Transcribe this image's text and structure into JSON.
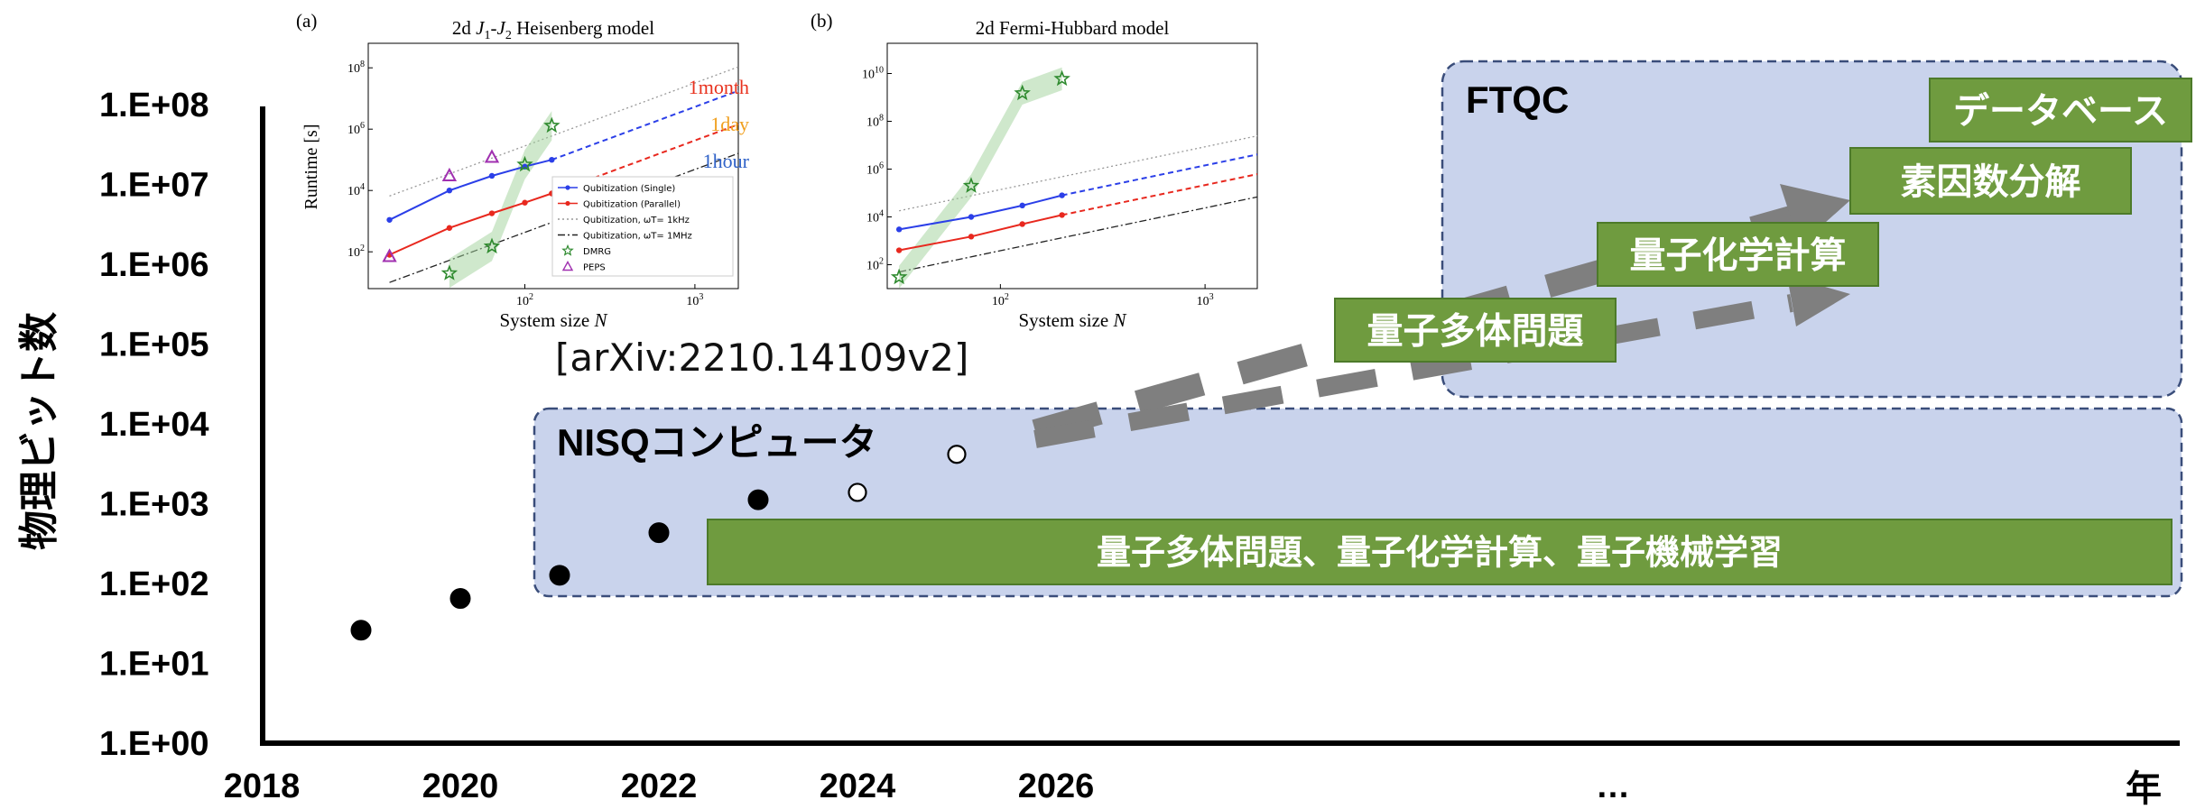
{
  "chart_data": {
    "type": "scatter",
    "ylabel": "物理ビット数",
    "x_end_label": "年",
    "x_ellipsis": "…",
    "scale": "log",
    "y_ticks": [
      "1.E+00",
      "1.E+01",
      "1.E+02",
      "1.E+03",
      "1.E+04",
      "1.E+05",
      "1.E+06",
      "1.E+07",
      "1.E+08"
    ],
    "x_ticks": [
      "2018",
      "2020",
      "2022",
      "2024",
      "2026"
    ],
    "series": [
      {
        "marker": "filled",
        "points": [
          {
            "x": 2019,
            "y": 26
          },
          {
            "x": 2020,
            "y": 65
          },
          {
            "x": 2021,
            "y": 127
          },
          {
            "x": 2022,
            "y": 433
          },
          {
            "x": 2023,
            "y": 1121
          }
        ]
      },
      {
        "marker": "open",
        "points": [
          {
            "x": 2024,
            "y": 1386
          },
          {
            "x": 2025,
            "y": 4158
          }
        ]
      }
    ],
    "regions": [
      {
        "label": "NISQコンピュータ",
        "box": "量子多体問題、量子化学計算、量子機械学習"
      },
      {
        "label": "FTQC",
        "boxes": [
          "量子多体問題",
          "量子化学計算",
          "素因数分解",
          "データベース"
        ]
      }
    ],
    "citation": "[arXiv:2210.14109v2]"
  },
  "colors": {
    "region_fill": "#c9d3ec",
    "region_border": "#3a4d7a",
    "green_box": "#6f9b3f",
    "green_border": "#4d7a2a",
    "arrow_gray": "#7f7f7f"
  },
  "inset_a": {
    "panel_label": "(a)",
    "title_parts": {
      "pre": "2d ",
      "j1": "J",
      "j1_sub": "1",
      "dash": "-",
      "j2": "J",
      "j2_sub": "2",
      "post": " Heisenberg model"
    },
    "ylabel": "Runtime [s]",
    "xlabel_text": "System size ",
    "xlabel_var": "N",
    "y_ticks": [
      {
        "base": "10",
        "exp": "2"
      },
      {
        "base": "10",
        "exp": "4"
      },
      {
        "base": "10",
        "exp": "6"
      },
      {
        "base": "10",
        "exp": "8"
      }
    ],
    "x_ticks": [
      {
        "base": "10",
        "exp": "2"
      },
      {
        "base": "10",
        "exp": "3"
      }
    ],
    "time_labels": [
      {
        "text": "1month",
        "color": "#e8321e"
      },
      {
        "text": "1day",
        "color": "#f0a020"
      },
      {
        "text": "1hour",
        "color": "#2f62c8"
      }
    ],
    "legend": [
      "Qubitization (Single)",
      "Qubitization (Parallel)",
      "Qubitization, ωT= 1kHz",
      "Qubitization, ωT= 1MHz",
      "DMRG",
      "PEPS"
    ],
    "single_points": [
      {
        "x": 16,
        "y": 1100.0
      },
      {
        "x": 36,
        "y": 10000.0
      },
      {
        "x": 64,
        "y": 30000.0
      },
      {
        "x": 100,
        "y": 60000.0
      },
      {
        "x": 144,
        "y": 100000.0
      }
    ],
    "parallel_points": [
      {
        "x": 16,
        "y": 80
      },
      {
        "x": 36,
        "y": 600
      },
      {
        "x": 64,
        "y": 1800
      },
      {
        "x": 100,
        "y": 4000
      },
      {
        "x": 144,
        "y": 8000
      }
    ],
    "dmrg_points": [
      {
        "x": 36,
        "y": 20
      },
      {
        "x": 64,
        "y": 150
      },
      {
        "x": 100,
        "y": 70000.0
      },
      {
        "x": 144,
        "y": 1300000.0
      }
    ],
    "peps_points": [
      {
        "x": 16,
        "y": 70
      },
      {
        "x": 36,
        "y": 30000.0
      },
      {
        "x": 64,
        "y": 120000.0
      }
    ]
  },
  "inset_b": {
    "panel_label": "(b)",
    "title": "2d Fermi-Hubbard model",
    "xlabel_text": "System size ",
    "xlabel_var": "N",
    "y_ticks": [
      {
        "base": "10",
        "exp": "2"
      },
      {
        "base": "10",
        "exp": "4"
      },
      {
        "base": "10",
        "exp": "6"
      },
      {
        "base": "10",
        "exp": "8"
      },
      {
        "base": "10",
        "exp": "10"
      }
    ],
    "x_ticks": [
      {
        "base": "10",
        "exp": "2"
      },
      {
        "base": "10",
        "exp": "3"
      }
    ],
    "single_points": [
      {
        "x": 32,
        "y": 3000.0
      },
      {
        "x": 72,
        "y": 10000.0
      },
      {
        "x": 128,
        "y": 30000.0
      },
      {
        "x": 200,
        "y": 80000.0
      }
    ],
    "parallel_points": [
      {
        "x": 32,
        "y": 400
      },
      {
        "x": 72,
        "y": 1500
      },
      {
        "x": 128,
        "y": 5000
      },
      {
        "x": 200,
        "y": 12000.0
      }
    ],
    "dmrg_points": [
      {
        "x": 32,
        "y": 30
      },
      {
        "x": 72,
        "y": 200000.0
      },
      {
        "x": 128,
        "y": 1500000000.0
      },
      {
        "x": 200,
        "y": 6000000000.0
      }
    ]
  }
}
